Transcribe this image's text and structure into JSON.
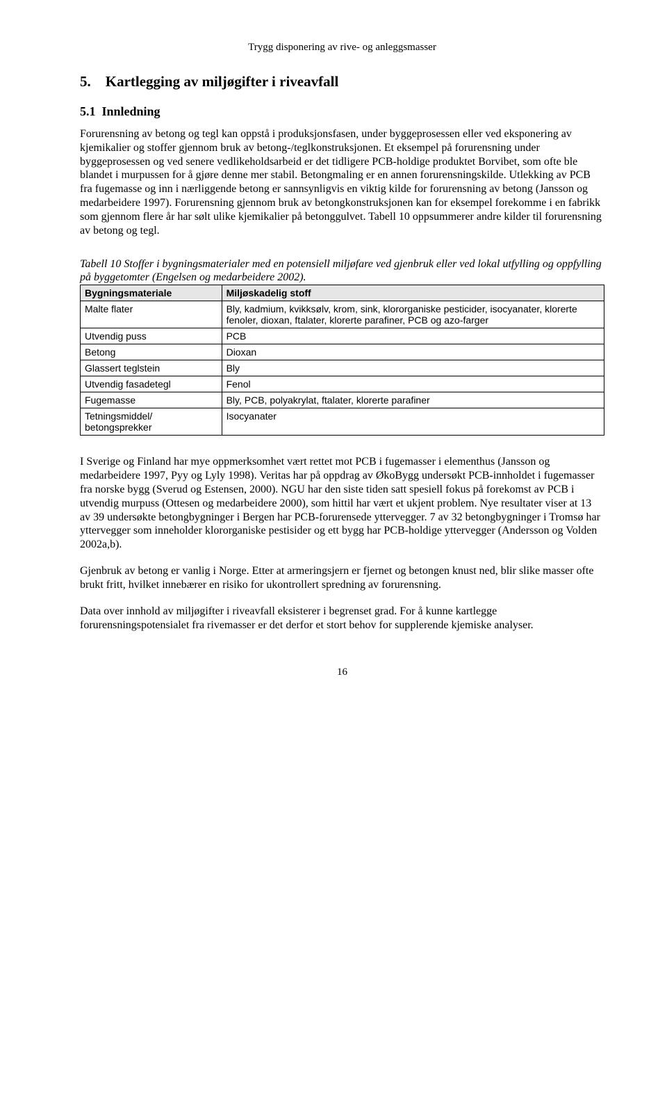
{
  "header": "Trygg disponering av rive- og anleggsmasser",
  "section_number": "5.",
  "section_title": "Kartlegging av miljøgifter i riveavfall",
  "subsection_number": "5.1",
  "subsection_title": "Innledning",
  "para1": "Forurensning av betong og tegl kan oppstå i produksjonsfasen, under byggeprosessen eller ved eksponering av kjemikalier og stoffer gjennom bruk av betong-/teglkonstruksjonen. Et eksempel på forurensning under byggeprosessen og ved senere vedlikeholdsarbeid er det tidligere PCB-holdige produktet Borvibet, som ofte ble blandet i murpussen for å gjøre denne mer stabil. Betongmaling er en annen forurensningskilde. Utlekking av PCB fra fugemasse og inn i nærliggende betong er sannsynligvis en viktig kilde for forurensning av betong (Jansson og medarbeidere 1997). Forurensning gjennom bruk av betongkonstruksjonen kan for eksempel forekomme i en fabrikk som gjennom flere år har sølt ulike kjemikalier på betonggulvet. Tabell 10 oppsummerer andre kilder til forurensning av betong og tegl.",
  "table_caption": "Tabell 10  Stoffer i bygningsmaterialer med en potensiell miljøfare ved gjenbruk eller ved lokal utfylling og oppfylling på byggetomter (Engelsen og medarbeidere 2002).",
  "table": {
    "columns": [
      "Bygningsmateriale",
      "Miljøskadelig stoff"
    ],
    "rows": [
      [
        "Malte flater",
        "Bly, kadmium, kvikksølv, krom, sink, klororganiske pesticider, isocyanater, klorerte fenoler, dioxan, ftalater, klorerte parafiner, PCB og azo-farger"
      ],
      [
        "Utvendig puss",
        "PCB"
      ],
      [
        "Betong",
        "Dioxan"
      ],
      [
        "Glassert teglstein",
        "Bly"
      ],
      [
        "Utvendig fasadetegl",
        "Fenol"
      ],
      [
        "Fugemasse",
        "Bly, PCB, polyakrylat, ftalater, klorerte parafiner"
      ],
      [
        "Tetningsmiddel/ betongsprekker",
        "Isocyanater"
      ]
    ]
  },
  "para2": "I Sverige og Finland har mye oppmerksomhet vært rettet mot PCB i fugemasser i elementhus (Jansson og medarbeidere 1997, Pyy og Lyly 1998). Veritas har på oppdrag av ØkoBygg undersøkt PCB-innholdet i fugemasser fra norske bygg (Sverud og Estensen, 2000). NGU har den siste tiden satt spesiell fokus på forekomst av PCB i utvendig murpuss (Ottesen og medarbeidere 2000), som hittil har vært et ukjent problem. Nye resultater viser at 13 av 39 undersøkte betongbygninger i Bergen har PCB-forurensede yttervegger. 7 av 32 betongbygninger i Tromsø har yttervegger som inneholder klororganiske pestisider og ett bygg har PCB-holdige yttervegger (Andersson og Volden 2002a,b).",
  "para3": "Gjenbruk av betong er vanlig i Norge. Etter at armeringsjern er fjernet og betongen knust ned, blir slike masser ofte brukt fritt, hvilket innebærer en risiko for ukontrollert spredning av forurensning.",
  "para4": "Data over innhold av miljøgifter i riveavfall eksisterer i begrenset grad. For å kunne kartlegge forurensningspotensialet fra rivemasser er det derfor et stort behov for supplerende kjemiske analyser.",
  "page_num": "16"
}
